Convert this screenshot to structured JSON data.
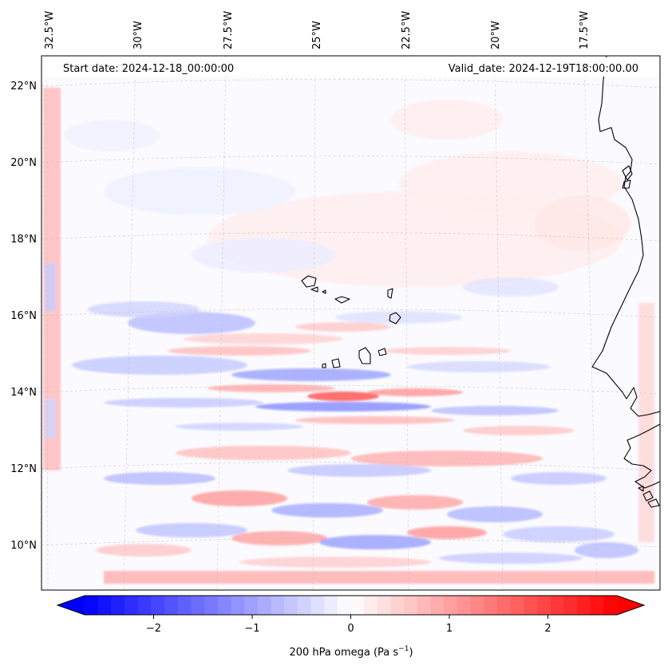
{
  "map": {
    "start_label": "Start date: 2024-12-18_00:00:00",
    "valid_label": "Valid_date: 2024-12-19T18:00:00.00",
    "lon_labels": [
      "32.5°W",
      "30°W",
      "27.5°W",
      "25°W",
      "22.5°W",
      "20°W",
      "17.5°W"
    ],
    "lat_labels": [
      "22°N",
      "20°N",
      "18°N",
      "16°N",
      "14°N",
      "12°N",
      "10°N"
    ],
    "colorbar": {
      "label_main": "200 hPa omega (Pa s",
      "label_exp": "−1",
      "label_close": ")",
      "ticks": [
        "−2",
        "−1",
        "0",
        "1",
        "2"
      ],
      "tick_values": [
        -2,
        -1,
        0,
        1,
        2
      ],
      "vmin": -2.7,
      "vmax": 2.7,
      "color_neg": "#0000ff",
      "color_mid": "#ffffff",
      "color_pos": "#ff0000"
    },
    "colors": {
      "coast": "#000000",
      "grid": "#bbbbbb"
    }
  }
}
